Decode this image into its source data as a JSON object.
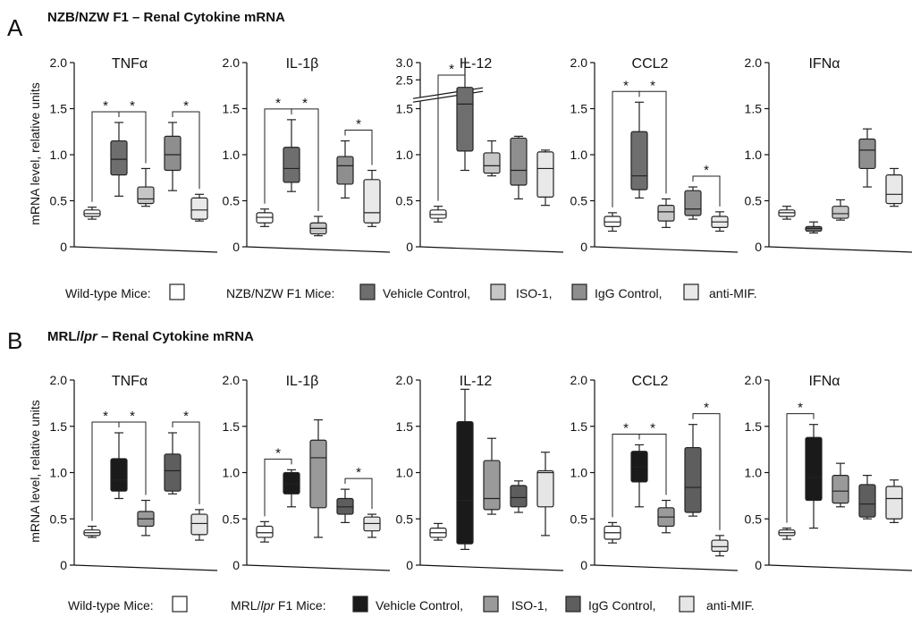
{
  "colors": {
    "wild_type": "#ffffff",
    "vehicle_control_A": "#6e6e6e",
    "iso1_A": "#c6c6c6",
    "igg_control_A": "#8e8e8e",
    "anti_mif_A": "#e9e9e9",
    "vehicle_control_B": "#1a1a1a",
    "iso1_B": "#9a9a9a",
    "igg_control_B": "#5e5e5e",
    "anti_mif_B": "#e6e6e6"
  },
  "panels": [
    {
      "letter": "A",
      "title": "NZB/NZW F1 – Renal Cytokine mRNA",
      "ylabel": "mRNA level, relative units",
      "legend": {
        "wild_type_label": "Wild-type Mice:",
        "strain_label": "NZB/NZW F1 Mice:",
        "groups": [
          "Vehicle Control,",
          "ISO-1,",
          "IgG Control,",
          "anti-MIF."
        ]
      }
    },
    {
      "letter": "B",
      "title_prefix": "MRL/",
      "title_italic": "lpr",
      "title_suffix": " – Renal Cytokine mRNA",
      "ylabel": "mRNA level, relative units",
      "legend": {
        "wild_type_label": "Wild-type Mice:",
        "strain_prefix": "MRL/",
        "strain_italic": "lpr",
        "strain_suffix": " F1 Mice:",
        "groups": [
          "Vehicle Control,",
          "ISO-1,",
          "IgG Control,",
          "anti-MIF."
        ]
      }
    }
  ],
  "chart_data": [
    {
      "panel": "A",
      "type": "box",
      "title": "TNFα",
      "ylim": [
        0,
        2.0
      ],
      "yticks": [
        "0",
        "0.5",
        "1.0",
        "1.5",
        "2.0"
      ],
      "groups": [
        "Wild-type",
        "Vehicle Control",
        "ISO-1",
        "IgG Control",
        "anti-MIF"
      ],
      "boxes": [
        [
          0.3,
          0.33,
          0.36,
          0.4,
          0.43
        ],
        [
          0.55,
          0.78,
          0.95,
          1.15,
          1.35
        ],
        [
          0.44,
          0.47,
          0.52,
          0.65,
          0.85
        ],
        [
          0.61,
          0.83,
          1.0,
          1.2,
          1.35
        ],
        [
          0.28,
          0.3,
          0.4,
          0.53,
          0.57
        ]
      ],
      "significance": [
        [
          "Wild-type",
          "Vehicle Control"
        ],
        [
          "Vehicle Control",
          "ISO-1"
        ],
        [
          "IgG Control",
          "anti-MIF"
        ]
      ]
    },
    {
      "panel": "A",
      "type": "box",
      "title": "IL-1β",
      "ylim": [
        0,
        2.0
      ],
      "yticks": [
        "0",
        "0.5",
        "1.0",
        "1.5",
        "2.0"
      ],
      "groups": [
        "Wild-type",
        "Vehicle Control",
        "ISO-1",
        "IgG Control",
        "anti-MIF"
      ],
      "boxes": [
        [
          0.22,
          0.26,
          0.32,
          0.37,
          0.41
        ],
        [
          0.6,
          0.7,
          0.85,
          1.08,
          1.38
        ],
        [
          0.12,
          0.14,
          0.2,
          0.26,
          0.33
        ],
        [
          0.53,
          0.68,
          0.88,
          0.98,
          1.15
        ],
        [
          0.22,
          0.26,
          0.37,
          0.73,
          0.83
        ]
      ],
      "significance": [
        [
          "Wild-type",
          "Vehicle Control"
        ],
        [
          "Vehicle Control",
          "ISO-1"
        ],
        [
          "IgG Control",
          "anti-MIF"
        ]
      ]
    },
    {
      "panel": "A",
      "type": "box",
      "title": "IL-12",
      "ylim": [
        0,
        3.0
      ],
      "yticks": [
        "0",
        "0.5",
        "1.0",
        "1.5",
        "2.5",
        "3.0"
      ],
      "axis_break": [
        1.7,
        2.4
      ],
      "groups": [
        "Wild-type",
        "Vehicle Control",
        "ISO-1",
        "IgG Control",
        "anti-MIF"
      ],
      "boxes": [
        [
          0.27,
          0.31,
          0.35,
          0.4,
          0.44
        ],
        [
          0.83,
          1.04,
          1.55,
          2.2,
          3.0
        ],
        [
          0.77,
          0.8,
          0.88,
          1.02,
          1.15
        ],
        [
          0.52,
          0.67,
          0.83,
          1.18,
          1.2
        ],
        [
          0.45,
          0.54,
          0.85,
          1.03,
          1.05
        ]
      ],
      "significance": [
        [
          "Wild-type",
          "Vehicle Control"
        ]
      ]
    },
    {
      "panel": "A",
      "type": "box",
      "title": "CCL2",
      "ylim": [
        0,
        2.0
      ],
      "yticks": [
        "0",
        "0.5",
        "1.0",
        "1.5",
        "2.0"
      ],
      "groups": [
        "Wild-type",
        "Vehicle Control",
        "ISO-1",
        "IgG Control",
        "anti-MIF"
      ],
      "boxes": [
        [
          0.17,
          0.22,
          0.27,
          0.33,
          0.37
        ],
        [
          0.53,
          0.62,
          0.77,
          1.25,
          1.57
        ],
        [
          0.21,
          0.28,
          0.38,
          0.45,
          0.52
        ],
        [
          0.3,
          0.34,
          0.41,
          0.61,
          0.65
        ],
        [
          0.17,
          0.21,
          0.27,
          0.33,
          0.38
        ]
      ],
      "significance": [
        [
          "Wild-type",
          "Vehicle Control"
        ],
        [
          "Vehicle Control",
          "ISO-1"
        ],
        [
          "IgG Control",
          "anti-MIF"
        ]
      ]
    },
    {
      "panel": "A",
      "type": "box",
      "title": "IFNα",
      "ylim": [
        0,
        2.0
      ],
      "yticks": [
        "0",
        "0.5",
        "1.0",
        "1.5",
        "2.0"
      ],
      "groups": [
        "Wild-type",
        "Vehicle Control",
        "ISO-1",
        "IgG Control",
        "anti-MIF"
      ],
      "boxes": [
        [
          0.3,
          0.33,
          0.37,
          0.4,
          0.44
        ],
        [
          0.15,
          0.17,
          0.2,
          0.22,
          0.27
        ],
        [
          0.29,
          0.31,
          0.36,
          0.44,
          0.51
        ],
        [
          0.65,
          0.85,
          1.05,
          1.17,
          1.28
        ],
        [
          0.44,
          0.47,
          0.57,
          0.78,
          0.85
        ]
      ],
      "significance": []
    },
    {
      "panel": "B",
      "type": "box",
      "title": "TNFα",
      "ylim": [
        0,
        2.0
      ],
      "yticks": [
        "0",
        "0.5",
        "1.0",
        "1.5",
        "2.0"
      ],
      "groups": [
        "Wild-type",
        "Vehicle Control",
        "ISO-1",
        "IgG Control",
        "anti-MIF"
      ],
      "boxes": [
        [
          0.3,
          0.32,
          0.35,
          0.38,
          0.42
        ],
        [
          0.72,
          0.8,
          0.92,
          1.15,
          1.43
        ],
        [
          0.32,
          0.42,
          0.5,
          0.58,
          0.7
        ],
        [
          0.77,
          0.8,
          1.02,
          1.2,
          1.43
        ],
        [
          0.27,
          0.33,
          0.45,
          0.55,
          0.6
        ]
      ],
      "significance": [
        [
          "Wild-type",
          "Vehicle Control"
        ],
        [
          "Vehicle Control",
          "ISO-1"
        ],
        [
          "IgG Control",
          "anti-MIF"
        ]
      ]
    },
    {
      "panel": "B",
      "type": "box",
      "title": "IL-1β",
      "ylim": [
        0,
        2.0
      ],
      "yticks": [
        "0",
        "0.5",
        "1.0",
        "1.5",
        "2.0"
      ],
      "groups": [
        "Wild-type",
        "Vehicle Control",
        "ISO-1",
        "IgG Control",
        "anti-MIF"
      ],
      "boxes": [
        [
          0.25,
          0.3,
          0.35,
          0.42,
          0.47
        ],
        [
          0.63,
          0.77,
          0.88,
          1.0,
          1.03
        ],
        [
          0.3,
          0.62,
          1.16,
          1.35,
          1.57
        ],
        [
          0.46,
          0.55,
          0.63,
          0.72,
          0.82
        ],
        [
          0.3,
          0.37,
          0.45,
          0.52,
          0.55
        ]
      ],
      "significance": [
        [
          "Wild-type",
          "Vehicle Control"
        ],
        [
          "IgG Control",
          "anti-MIF"
        ]
      ]
    },
    {
      "panel": "B",
      "type": "box",
      "title": "IL-12",
      "ylim": [
        0,
        2.0
      ],
      "yticks": [
        "0",
        "0.5",
        "1.0",
        "1.5",
        "2.0"
      ],
      "groups": [
        "Wild-type",
        "Vehicle Control",
        "ISO-1",
        "IgG Control",
        "anti-MIF"
      ],
      "boxes": [
        [
          0.27,
          0.3,
          0.35,
          0.4,
          0.45
        ],
        [
          0.17,
          0.23,
          0.7,
          1.55,
          1.9
        ],
        [
          0.55,
          0.6,
          0.72,
          1.13,
          1.37
        ],
        [
          0.57,
          0.63,
          0.73,
          0.86,
          0.91
        ],
        [
          0.32,
          0.63,
          1.0,
          1.02,
          1.22
        ]
      ],
      "significance": []
    },
    {
      "panel": "B",
      "type": "box",
      "title": "CCL2",
      "ylim": [
        0,
        2.0
      ],
      "yticks": [
        "0",
        "0.5",
        "1.0",
        "1.5",
        "2.0"
      ],
      "groups": [
        "Wild-type",
        "Vehicle Control",
        "ISO-1",
        "IgG Control",
        "anti-MIF"
      ],
      "boxes": [
        [
          0.24,
          0.28,
          0.35,
          0.42,
          0.46
        ],
        [
          0.63,
          0.9,
          1.06,
          1.23,
          1.3
        ],
        [
          0.35,
          0.42,
          0.52,
          0.62,
          0.7
        ],
        [
          0.53,
          0.57,
          0.84,
          1.27,
          1.52
        ],
        [
          0.1,
          0.15,
          0.2,
          0.27,
          0.32
        ]
      ],
      "significance": [
        [
          "Wild-type",
          "Vehicle Control"
        ],
        [
          "Vehicle Control",
          "ISO-1"
        ],
        [
          "IgG Control",
          "anti-MIF"
        ]
      ]
    },
    {
      "panel": "B",
      "type": "box",
      "title": "IFNα",
      "ylim": [
        0,
        2.0
      ],
      "yticks": [
        "0",
        "0.5",
        "1.0",
        "1.5",
        "2.0"
      ],
      "groups": [
        "Wild-type",
        "Vehicle Control",
        "ISO-1",
        "IgG Control",
        "anti-MIF"
      ],
      "boxes": [
        [
          0.28,
          0.32,
          0.35,
          0.38,
          0.4
        ],
        [
          0.4,
          0.7,
          0.95,
          1.38,
          1.52
        ],
        [
          0.63,
          0.67,
          0.8,
          0.97,
          1.1
        ],
        [
          0.5,
          0.52,
          0.66,
          0.87,
          0.97
        ],
        [
          0.46,
          0.5,
          0.72,
          0.85,
          0.92
        ]
      ],
      "significance": [
        [
          "Wild-type",
          "Vehicle Control"
        ]
      ]
    }
  ]
}
